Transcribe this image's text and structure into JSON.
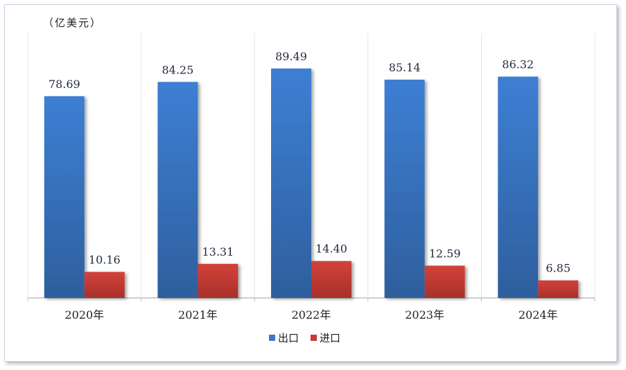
{
  "chart_data": {
    "type": "bar",
    "unit_label": "（亿美元）",
    "categories": [
      "2020年",
      "2021年",
      "2022年",
      "2023年",
      "2024年"
    ],
    "series": [
      {
        "name": "出口",
        "color": "#3a78c9",
        "values": [
          78.69,
          84.25,
          89.49,
          85.14,
          86.32
        ],
        "labels": [
          "78.69",
          "84.25",
          "89.49",
          "85.14",
          "86.32"
        ]
      },
      {
        "name": "进口",
        "color": "#c83a33",
        "values": [
          10.16,
          13.31,
          14.4,
          12.59,
          6.85
        ],
        "labels": [
          "10.16",
          "13.31",
          "14.40",
          "12.59",
          "6.85"
        ]
      }
    ],
    "ylim": [
      0,
      100
    ],
    "grid": false,
    "legend_position": "bottom"
  }
}
